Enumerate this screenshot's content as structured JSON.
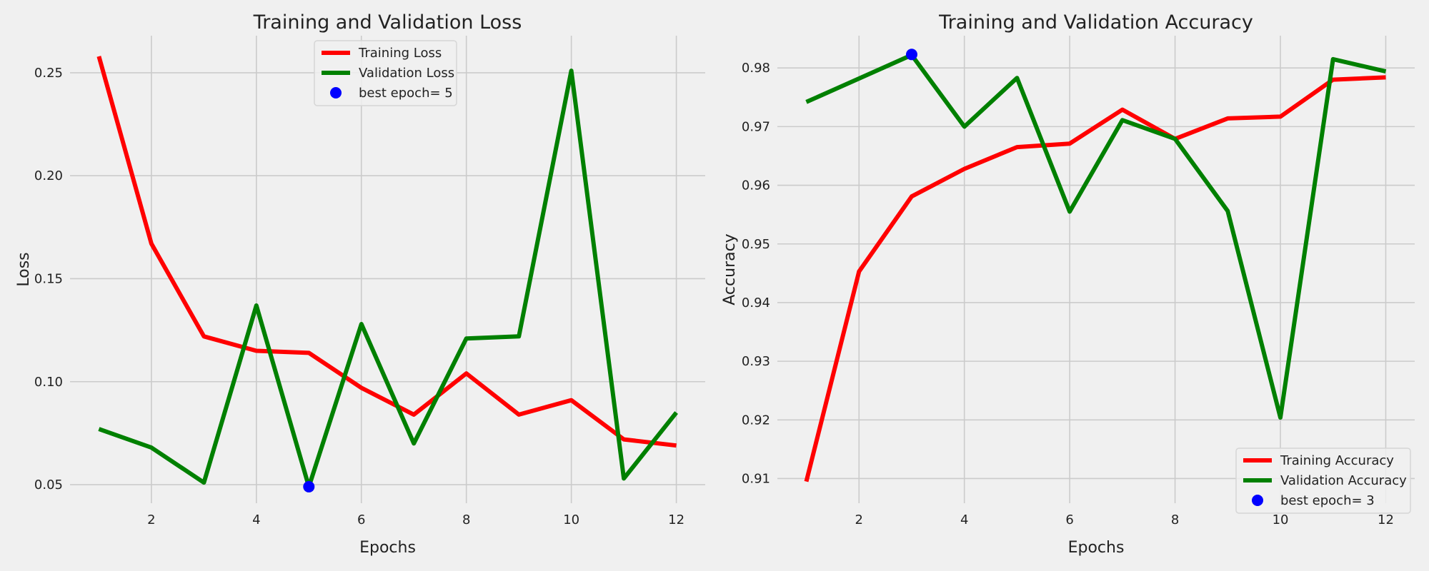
{
  "chart_data": [
    {
      "type": "line",
      "title": "Training and Validation Loss",
      "xlabel": "Epochs",
      "ylabel": "Loss",
      "x": [
        1,
        2,
        3,
        4,
        5,
        6,
        7,
        8,
        9,
        10,
        11,
        12
      ],
      "xlim": [
        0.45,
        12.55
      ],
      "ylim": [
        0.041,
        0.268
      ],
      "xticks": [
        2,
        4,
        6,
        8,
        10,
        12
      ],
      "yticks": [
        0.05,
        0.1,
        0.15,
        0.2,
        0.25
      ],
      "ytick_labels": [
        "0.05",
        "0.10",
        "0.15",
        "0.20",
        "0.25"
      ],
      "grid": true,
      "legend_position": "top-center",
      "series": [
        {
          "name": "Training Loss",
          "color": "#ff0000",
          "values": [
            0.258,
            0.167,
            0.122,
            0.115,
            0.114,
            0.097,
            0.084,
            0.104,
            0.084,
            0.091,
            0.072,
            0.069
          ]
        },
        {
          "name": "Validation Loss",
          "color": "#008000",
          "values": [
            0.077,
            0.068,
            0.051,
            0.137,
            0.049,
            0.128,
            0.07,
            0.121,
            0.122,
            0.251,
            0.053,
            0.085
          ]
        }
      ],
      "best_point": {
        "label": "best epoch= 5",
        "x": 5,
        "y": 0.049,
        "color": "#0000ff"
      }
    },
    {
      "type": "line",
      "title": "Training and Validation Accuracy",
      "xlabel": "Epochs",
      "ylabel": "Accuracy",
      "x": [
        1,
        2,
        3,
        4,
        5,
        6,
        7,
        8,
        9,
        10,
        11,
        12
      ],
      "xlim": [
        0.45,
        12.55
      ],
      "ylim": [
        0.9058,
        0.9855
      ],
      "xticks": [
        2,
        4,
        6,
        8,
        10,
        12
      ],
      "yticks": [
        0.91,
        0.92,
        0.93,
        0.94,
        0.95,
        0.96,
        0.97,
        0.98
      ],
      "ytick_labels": [
        "0.91",
        "0.92",
        "0.93",
        "0.94",
        "0.95",
        "0.96",
        "0.97",
        "0.98"
      ],
      "grid": true,
      "legend_position": "bottom-right",
      "series": [
        {
          "name": "Training Accuracy",
          "color": "#ff0000",
          "values": [
            0.9095,
            0.9453,
            0.9581,
            0.9628,
            0.9665,
            0.9671,
            0.9729,
            0.9679,
            0.9714,
            0.9717,
            0.978,
            0.9784
          ]
        },
        {
          "name": "Validation Accuracy",
          "color": "#008000",
          "values": [
            0.9742,
            0.9782,
            0.9822,
            0.97,
            0.9783,
            0.9555,
            0.9711,
            0.9679,
            0.9556,
            0.9204,
            0.9815,
            0.9794
          ]
        }
      ],
      "best_point": {
        "label": "best epoch= 3",
        "x": 3,
        "y": 0.9823,
        "color": "#0000ff"
      }
    }
  ]
}
